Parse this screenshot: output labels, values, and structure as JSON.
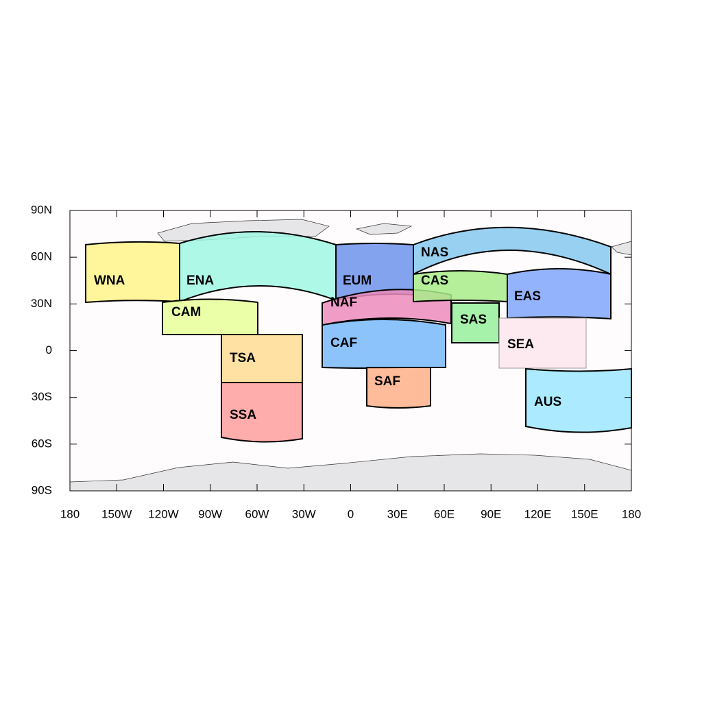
{
  "map": {
    "xticks": [
      {
        "value": -180,
        "label": "180"
      },
      {
        "value": -150,
        "label": "150W"
      },
      {
        "value": -120,
        "label": "120W"
      },
      {
        "value": -90,
        "label": "90W"
      },
      {
        "value": -60,
        "label": "60W"
      },
      {
        "value": -30,
        "label": "30W"
      },
      0,
      {
        "value": 30,
        "label": "30E"
      },
      {
        "value": 60,
        "label": "60E"
      },
      {
        "value": 90,
        "label": "90E"
      },
      {
        "value": 120,
        "label": "120E"
      },
      {
        "value": 150,
        "label": "150E"
      },
      180
    ],
    "yticks": [
      {
        "value": 90,
        "label": "90N"
      },
      {
        "value": 60,
        "label": "60N"
      },
      {
        "value": 30,
        "label": "30N"
      },
      0,
      {
        "value": -30,
        "label": "30S"
      },
      {
        "value": -60,
        "label": "60S"
      },
      {
        "value": -90,
        "label": "90S"
      }
    ],
    "regions": [
      {
        "label": "WNA",
        "color": "#fff38a"
      },
      {
        "label": "ENA",
        "color": "#a0f7e4"
      },
      {
        "label": "CAM",
        "color": "#e6ff99"
      },
      {
        "label": "TSA",
        "color": "#ffdc94"
      },
      {
        "label": "SSA",
        "color": "#ff9e9e"
      },
      {
        "label": "EUM",
        "color": "#6f93ec"
      },
      {
        "label": "NAF",
        "color": "#ec8cbc"
      },
      {
        "label": "CAF",
        "color": "#78b8fa"
      },
      {
        "label": "SAF",
        "color": "#ffb08a"
      },
      {
        "label": "NAS",
        "color": "#86c8ee"
      },
      {
        "label": "CAS",
        "color": "#a8ec88"
      },
      {
        "label": "EAS",
        "color": "#80a6fc"
      },
      {
        "label": "SAS",
        "color": "#98f09c"
      },
      {
        "label": "SEA",
        "color": "#fde6ee"
      },
      {
        "label": "AUS",
        "color": "#9ee6ff"
      }
    ]
  }
}
